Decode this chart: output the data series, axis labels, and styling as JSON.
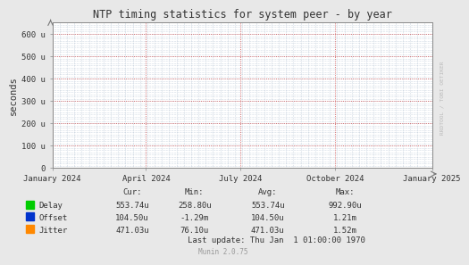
{
  "title": "NTP timing statistics for system peer - by year",
  "ylabel": "seconds",
  "fig_bg_color": "#e8e8e8",
  "plot_bg_color": "#ffffff",
  "grid_color_h": "#cc4444",
  "grid_color_v": "#aabbcc",
  "yticks": [
    0,
    100,
    200,
    300,
    400,
    500,
    600
  ],
  "ytick_labels": [
    "0",
    "100 u",
    "200 u",
    "300 u",
    "400 u",
    "500 u",
    "600 u"
  ],
  "xtick_labels": [
    "January 2024",
    "April 2024",
    "July 2024",
    "October 2024",
    "January 2025"
  ],
  "xtick_positions": [
    0.0,
    0.2466,
    0.4959,
    0.7452,
    1.0
  ],
  "ylim": [
    0,
    650
  ],
  "legend_items": [
    {
      "label": "Delay",
      "color": "#00cc00"
    },
    {
      "label": "Offset",
      "color": "#0033cc"
    },
    {
      "label": "Jitter",
      "color": "#ff8800"
    }
  ],
  "table_headers": [
    "Cur:",
    "Min:",
    "Avg:",
    "Max:"
  ],
  "table_data": [
    [
      "553.74u",
      "258.80u",
      "553.74u",
      "992.90u"
    ],
    [
      "104.50u",
      "-1.29m",
      "104.50u",
      "1.21m"
    ],
    [
      "471.03u",
      "76.10u",
      "471.03u",
      "1.52m"
    ]
  ],
  "last_update": "Last update: Thu Jan  1 01:00:00 1970",
  "munin_version": "Munin 2.0.75",
  "watermark": "RRDTOOL / TOBI OETIKER",
  "text_color": "#333333",
  "muted_color": "#999999"
}
